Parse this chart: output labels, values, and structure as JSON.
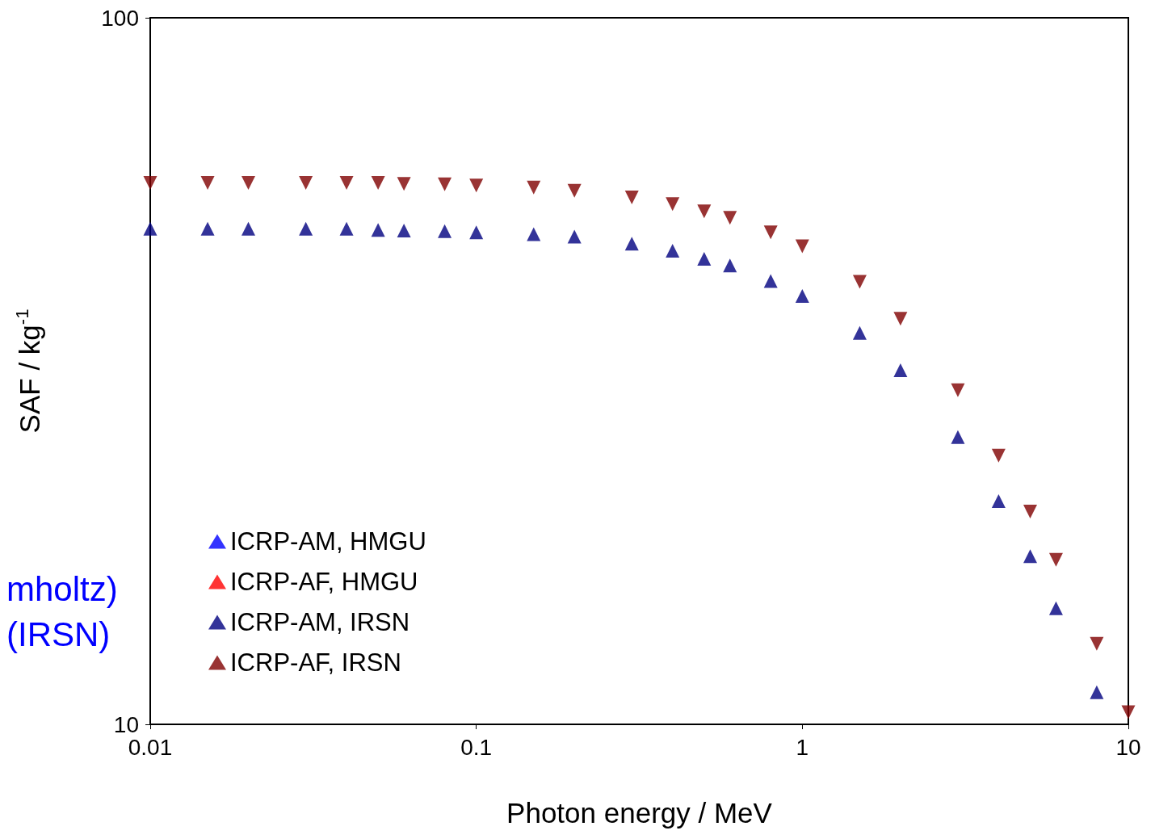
{
  "chart_data": {
    "type": "scatter",
    "xlabel": "Photon energy / MeV",
    "ylabel": "SAF / kg$^{-1}$",
    "log": "xy",
    "xlim": [
      0.01,
      10
    ],
    "xticks": [
      0.01,
      0.1,
      1,
      10
    ],
    "ylim": [
      10,
      100
    ],
    "yticks": [
      10,
      100
    ],
    "grid": false,
    "legend": "bottom left",
    "x": [
      0.01,
      0.015,
      0.02,
      0.03,
      0.04,
      0.05,
      0.06,
      0.08,
      0.1,
      0.15,
      0.2,
      0.3,
      0.4,
      0.5,
      0.6,
      0.8,
      1,
      1.5,
      2,
      3,
      4,
      5,
      6,
      8,
      10
    ],
    "series": [
      {
        "name": "ICRP-AM, HMGU",
        "color": "#0000ff",
        "marker": "triangle",
        "values": [
          null,
          null,
          null,
          null,
          null,
          null,
          null,
          null,
          null,
          null,
          null,
          null,
          null,
          null,
          null,
          null,
          null,
          null,
          null,
          null,
          null,
          null,
          null,
          null,
          null
        ]
      },
      {
        "name": "ICRP-AF, HMGU",
        "color": "#ff0000",
        "marker": "triangle-down",
        "values": [
          null,
          null,
          null,
          null,
          null,
          null,
          null,
          null,
          null,
          null,
          null,
          null,
          null,
          null,
          null,
          null,
          null,
          null,
          null,
          null,
          null,
          null,
          null,
          null,
          null
        ]
      },
      {
        "name": "ICRP-AM, IRSN",
        "color": "#000080",
        "marker": "triangle",
        "values": [
          50.3,
          50.3,
          50.3,
          50.3,
          50.3,
          50.1,
          50.0,
          49.9,
          49.7,
          49.4,
          49.0,
          47.9,
          46.8,
          45.6,
          44.6,
          42.4,
          40.4,
          35.8,
          31.7,
          25.5,
          20.7,
          17.3,
          14.6,
          11.1,
          null
        ]
      },
      {
        "name": "ICRP-AF, IRSN",
        "color": "#800000",
        "marker": "triangle-down",
        "values": [
          58.4,
          58.4,
          58.4,
          58.4,
          58.4,
          58.4,
          58.2,
          58.1,
          57.9,
          57.5,
          56.9,
          55.7,
          54.5,
          53.2,
          52.1,
          49.7,
          47.5,
          42.3,
          37.5,
          29.7,
          24.0,
          20.0,
          17.1,
          13.0,
          10.4
        ]
      }
    ],
    "annotations": [
      "mholtz)",
      "(IRSN)"
    ]
  }
}
